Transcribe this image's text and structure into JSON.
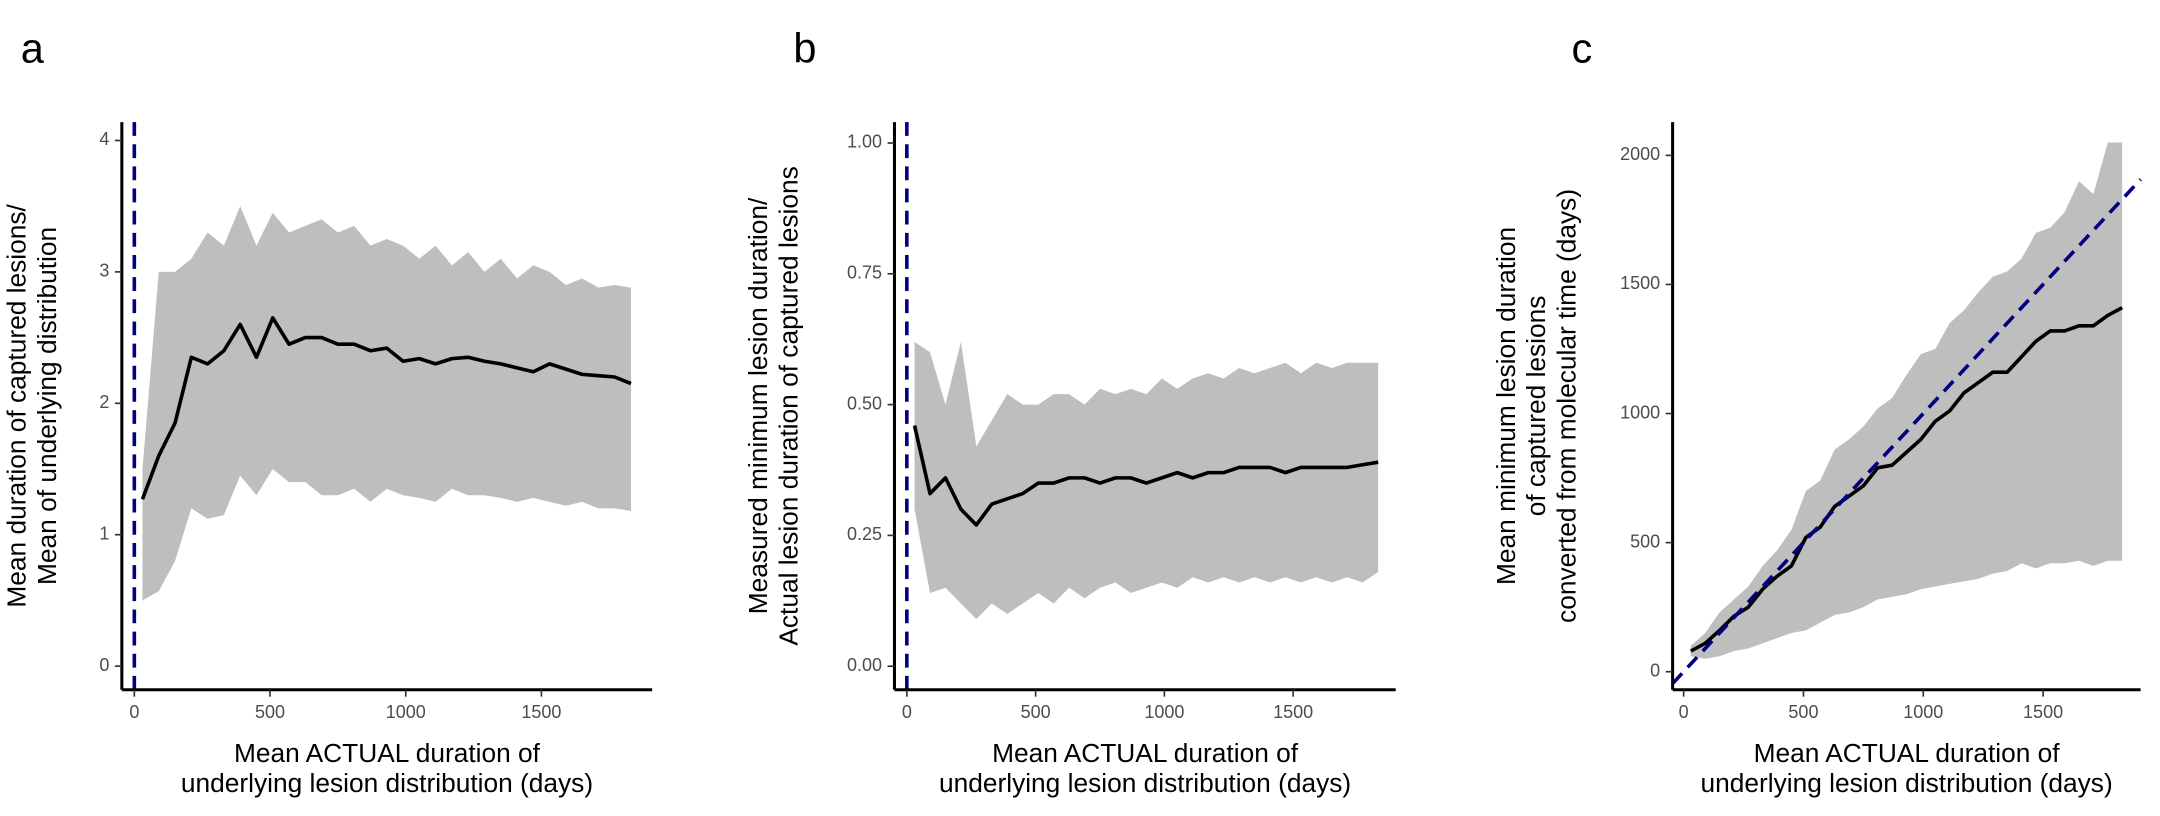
{
  "chart_data": [
    {
      "type": "line",
      "panel_label": "a",
      "ylabel": [
        "Mean duration of captured lesions/",
        "Mean of underlying distribution"
      ],
      "xlabel": [
        "Mean ACTUAL duration of",
        "underlying lesion distribution (days)"
      ],
      "x": [
        30,
        90,
        150,
        210,
        270,
        330,
        390,
        450,
        510,
        570,
        630,
        690,
        750,
        810,
        870,
        930,
        990,
        1050,
        1110,
        1170,
        1230,
        1290,
        1350,
        1410,
        1470,
        1530,
        1590,
        1650,
        1710,
        1770,
        1830
      ],
      "series": [
        {
          "color": "#000000",
          "band_color": "#bebebe",
          "values": [
            1.27,
            1.6,
            1.85,
            2.35,
            2.3,
            2.4,
            2.6,
            2.35,
            2.65,
            2.45,
            2.5,
            2.5,
            2.45,
            2.45,
            2.4,
            2.42,
            2.32,
            2.34,
            2.3,
            2.34,
            2.35,
            2.32,
            2.3,
            2.27,
            2.24,
            2.3,
            2.26,
            2.22,
            2.21,
            2.2,
            2.15
          ],
          "upper": [
            1.5,
            3.0,
            3.0,
            3.1,
            3.3,
            3.2,
            3.5,
            3.2,
            3.45,
            3.3,
            3.35,
            3.4,
            3.3,
            3.35,
            3.2,
            3.25,
            3.2,
            3.1,
            3.2,
            3.05,
            3.15,
            3.0,
            3.1,
            2.95,
            3.05,
            3.0,
            2.9,
            2.95,
            2.88,
            2.9,
            2.88
          ],
          "lower": [
            0.5,
            0.57,
            0.8,
            1.2,
            1.12,
            1.15,
            1.45,
            1.3,
            1.5,
            1.4,
            1.4,
            1.3,
            1.3,
            1.35,
            1.25,
            1.35,
            1.3,
            1.28,
            1.25,
            1.35,
            1.3,
            1.3,
            1.28,
            1.25,
            1.28,
            1.25,
            1.22,
            1.25,
            1.2,
            1.2,
            1.18
          ]
        }
      ],
      "vline": {
        "x": 0,
        "color": "#000080"
      },
      "xlim": [
        -46,
        1908
      ],
      "ylim": [
        -0.18,
        4.14
      ],
      "xticks": [
        0,
        500,
        1000,
        1500
      ],
      "yticks": [
        0,
        1,
        2,
        3,
        4
      ]
    },
    {
      "type": "line",
      "panel_label": "b",
      "ylabel": [
        "Measured minimum lesion duration/",
        "Actual lesion duration of captured lesions"
      ],
      "xlabel": [
        "Mean ACTUAL duration of",
        "underlying lesion distribution (days)"
      ],
      "x": [
        30,
        90,
        150,
        210,
        270,
        330,
        390,
        450,
        510,
        570,
        630,
        690,
        750,
        810,
        870,
        930,
        990,
        1050,
        1110,
        1170,
        1230,
        1290,
        1350,
        1410,
        1470,
        1530,
        1590,
        1650,
        1710,
        1770,
        1830
      ],
      "series": [
        {
          "color": "#000000",
          "band_color": "#bebebe",
          "values": [
            0.46,
            0.33,
            0.36,
            0.3,
            0.27,
            0.31,
            0.32,
            0.33,
            0.35,
            0.35,
            0.36,
            0.36,
            0.35,
            0.36,
            0.36,
            0.35,
            0.36,
            0.37,
            0.36,
            0.37,
            0.37,
            0.38,
            0.38,
            0.38,
            0.37,
            0.38,
            0.38,
            0.38,
            0.38,
            0.385,
            0.39
          ],
          "upper": [
            0.62,
            0.6,
            0.5,
            0.62,
            0.42,
            0.47,
            0.52,
            0.5,
            0.5,
            0.52,
            0.52,
            0.5,
            0.53,
            0.52,
            0.53,
            0.52,
            0.55,
            0.53,
            0.55,
            0.56,
            0.55,
            0.57,
            0.56,
            0.57,
            0.58,
            0.56,
            0.58,
            0.57,
            0.58,
            0.58,
            0.58
          ],
          "lower": [
            0.3,
            0.14,
            0.15,
            0.12,
            0.09,
            0.12,
            0.1,
            0.12,
            0.14,
            0.12,
            0.15,
            0.13,
            0.15,
            0.16,
            0.14,
            0.15,
            0.16,
            0.15,
            0.17,
            0.16,
            0.17,
            0.16,
            0.17,
            0.16,
            0.17,
            0.16,
            0.17,
            0.16,
            0.17,
            0.16,
            0.18
          ]
        }
      ],
      "vline": {
        "x": 0,
        "color": "#000080"
      },
      "xlim": [
        -48,
        1898
      ],
      "ylim": [
        -0.045,
        1.04
      ],
      "xticks": [
        0,
        500,
        1000,
        1500
      ],
      "yticks": [
        {
          "value": 0,
          "label": "0.00"
        },
        {
          "value": 0.25,
          "label": "0.25"
        },
        {
          "value": 0.5,
          "label": "0.50"
        },
        {
          "value": 0.75,
          "label": "0.75"
        },
        {
          "value": 1,
          "label": "1.00"
        }
      ]
    },
    {
      "type": "line",
      "panel_label": "c",
      "ylabel": [
        "Mean minimum lesion duration",
        "of captured lesions",
        "converted from molecular time (days)"
      ],
      "xlabel": [
        "Mean ACTUAL duration of",
        "underlying lesion distribution (days)"
      ],
      "x": [
        30,
        90,
        150,
        210,
        270,
        330,
        390,
        450,
        510,
        570,
        630,
        690,
        750,
        810,
        870,
        930,
        990,
        1050,
        1110,
        1170,
        1230,
        1290,
        1350,
        1410,
        1470,
        1530,
        1590,
        1650,
        1710,
        1770,
        1830
      ],
      "series": [
        {
          "color": "#000000",
          "band_color": "#bebebe",
          "values": [
            80,
            110,
            160,
            215,
            250,
            320,
            370,
            410,
            520,
            560,
            640,
            680,
            720,
            790,
            800,
            850,
            900,
            970,
            1010,
            1080,
            1120,
            1160,
            1160,
            1220,
            1280,
            1320,
            1320,
            1340,
            1340,
            1380,
            1410
          ],
          "upper": [
            100,
            150,
            230,
            280,
            330,
            410,
            470,
            550,
            700,
            740,
            860,
            900,
            950,
            1020,
            1060,
            1150,
            1230,
            1250,
            1350,
            1400,
            1470,
            1530,
            1550,
            1600,
            1700,
            1720,
            1780,
            1900,
            1850,
            2050,
            2050
          ],
          "lower": [
            60,
            50,
            60,
            80,
            90,
            110,
            130,
            150,
            160,
            190,
            220,
            230,
            250,
            280,
            290,
            300,
            320,
            330,
            340,
            350,
            360,
            380,
            390,
            420,
            400,
            420,
            420,
            430,
            410,
            430,
            430
          ]
        }
      ],
      "diagonal": {
        "slope": 1,
        "intercept": 0,
        "color": "#000080"
      },
      "xlim": [
        -46,
        1907
      ],
      "ylim": [
        -70,
        2129
      ],
      "xticks": [
        0,
        500,
        1000,
        1500
      ],
      "yticks": [
        0,
        500,
        1000,
        1500,
        2000
      ]
    }
  ]
}
